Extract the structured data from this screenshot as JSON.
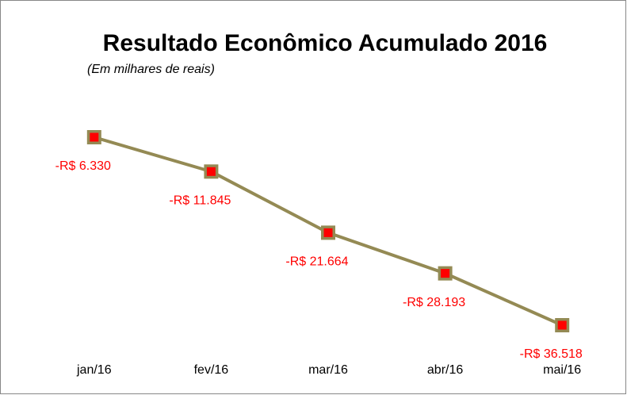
{
  "chart_data": {
    "type": "line",
    "title": "Resultado Econômico Acumulado 2016",
    "subtitle": "(Em milhares de reais)",
    "categories": [
      "jan/16",
      "fev/16",
      "mar/16",
      "abr/16",
      "mai/16"
    ],
    "series": [
      {
        "color": "#948a54",
        "marker_color": "#ff0000",
        "values": [
          -6330,
          -11845,
          -21664,
          -28193,
          -36518
        ],
        "value_labels": [
          "-R$ 6.330",
          "-R$ 11.845",
          "-R$ 21.664",
          "-R$ 28.193",
          "-R$ 36.518"
        ]
      }
    ]
  }
}
